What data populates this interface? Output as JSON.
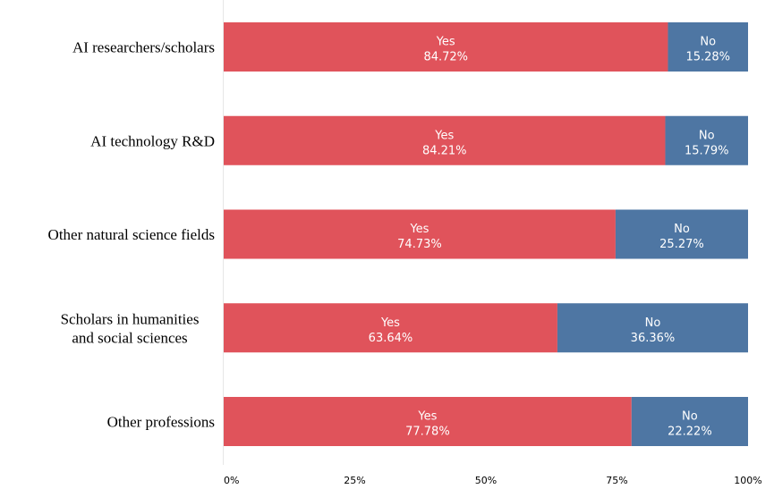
{
  "chart_data": {
    "type": "bar",
    "orientation": "horizontal",
    "stacked": true,
    "categories": [
      [
        "AI researchers/scholars"
      ],
      [
        "AI technology R&D"
      ],
      [
        "Other natural science fields"
      ],
      [
        "Scholars in humanities",
        "and social sciences"
      ],
      [
        "Other professions"
      ]
    ],
    "series": [
      {
        "name": "Yes",
        "values": [
          84.72,
          84.21,
          74.73,
          63.64,
          77.78
        ],
        "labels": [
          "84.72%",
          "84.21%",
          "74.73%",
          "63.64%",
          "77.78%"
        ],
        "color": "#e0535b"
      },
      {
        "name": "No",
        "values": [
          15.28,
          15.79,
          25.27,
          36.36,
          22.22
        ],
        "labels": [
          "15.28%",
          "15.79%",
          "25.27%",
          "36.36%",
          "22.22%"
        ],
        "color": "#4e76a3"
      }
    ],
    "xlim": [
      0,
      100
    ],
    "xticks": [
      0,
      25,
      50,
      75,
      100
    ],
    "xtick_labels": [
      "0%",
      "25%",
      "50%",
      "75%",
      "100%"
    ],
    "title": "",
    "xlabel": "",
    "ylabel": "",
    "grid": false,
    "legend": "none"
  }
}
